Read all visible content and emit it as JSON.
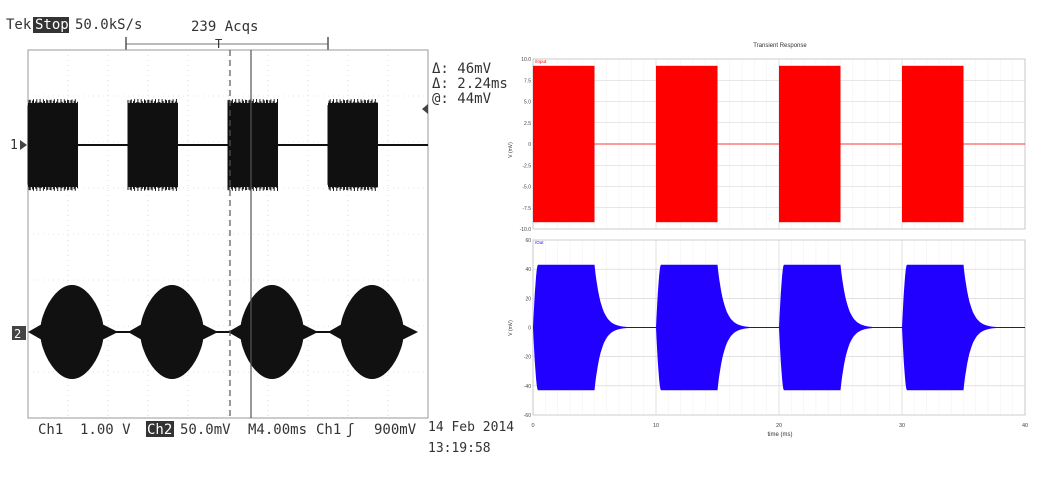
{
  "chart_data": [
    {
      "type": "line",
      "source": "oscilloscope",
      "header": {
        "brand": "Tek",
        "run_state": "Stop",
        "sample_rate": "50.0kS/s",
        "acquisitions": "239 Acqs",
        "trigger_marker": "T"
      },
      "cursor_readout": {
        "delta_v": "Δ: 46mV",
        "delta_t": "Δ: 2.24ms",
        "at_v": "@: 44mV"
      },
      "channel_markers": {
        "ch1": "1",
        "ch2": "2"
      },
      "footer": {
        "ch1_label": "Ch1",
        "ch1_scale": "1.00 V",
        "ch2_label": "Ch2",
        "ch2_scale": "50.0mV",
        "timebase": "M4.00ms",
        "trigger_source": "Ch1",
        "trigger_slope": "ʃ",
        "trigger_level": "900mV",
        "date": "14 Feb 2014",
        "time": "13:19:58"
      },
      "grid": true,
      "x_divisions": 10,
      "y_divisions": 8,
      "series": [
        {
          "bursts_start_div": [
            0.0,
            2.5,
            5.0,
            7.5
          ],
          "burst_width_div": 1.25,
          "shape": "rectangular"
        },
        {
          "bursts_start_div": [
            0.3,
            2.8,
            5.3,
            7.8
          ],
          "burst_width_div": 1.6,
          "shape": "rounded"
        }
      ],
      "colors": {
        "trace": "#111111",
        "grid": "#c8c8c8",
        "cursor": "#555555"
      }
    },
    {
      "type": "line",
      "source": "simulation",
      "title": "Transient Response",
      "xlabel": "time (ms)",
      "xlim": [
        0,
        40
      ],
      "x_ticks": [
        "0",
        "10",
        "20",
        "30",
        "40"
      ],
      "grid": true,
      "subplots": [
        {
          "ylabel": "V (mV)",
          "ylim": [
            -10,
            10
          ],
          "y_ticks": [
            "10.0",
            "7.5",
            "5.0",
            "2.5",
            "0",
            "-2.5",
            "-5.0",
            "-7.5",
            "-10.0"
          ],
          "tag": "/Input",
          "color": "#ff0000",
          "bursts": [
            [
              0,
              5
            ],
            [
              10,
              15
            ],
            [
              20,
              25
            ],
            [
              30,
              35
            ]
          ],
          "amplitude": 9.2,
          "decay_ms": 0
        },
        {
          "ylabel": "V (mV)",
          "ylim": [
            -60,
            60
          ],
          "y_ticks": [
            "60",
            "40",
            "20",
            "0",
            "-20",
            "-40",
            "-60"
          ],
          "tag": "/Out",
          "color": "#2200ff",
          "bursts": [
            [
              0,
              5
            ],
            [
              10,
              15
            ],
            [
              20,
              25
            ],
            [
              30,
              35
            ]
          ],
          "amplitude": 43,
          "decay_ms": 0.55
        }
      ]
    }
  ]
}
